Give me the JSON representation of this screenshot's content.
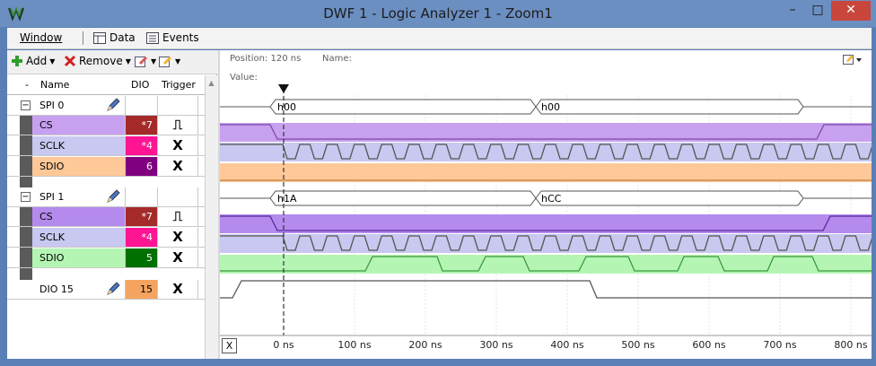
{
  "window": {
    "title": "DWF 1 - Logic Analyzer 1 - Zoom1",
    "controls": {
      "minimize": "–",
      "maximize": "□",
      "close": "✕"
    }
  },
  "menu": {
    "window": "Window",
    "data": "Data",
    "events": "Events"
  },
  "toolbar": {
    "add": "Add",
    "remove": "Remove"
  },
  "table": {
    "col_dash": "-",
    "col_name": "Name",
    "col_dio": "DIO",
    "col_trigger": "Trigger"
  },
  "rows": [
    {
      "kind": "bus",
      "name": "SPI 0",
      "collapse": "−"
    },
    {
      "kind": "signal",
      "name": "CS",
      "dio": "*7",
      "color": "#c8a0f0",
      "dio_color": "#a52a2a",
      "trigger": "⎍"
    },
    {
      "kind": "signal",
      "name": "SCLK",
      "dio": "*4",
      "color": "#c8c8f0",
      "dio_color": "#ff1493",
      "trigger": "X"
    },
    {
      "kind": "signal",
      "name": "SDIO",
      "dio": "6",
      "color": "#ffc899",
      "dio_color": "#800080",
      "trigger": "X"
    },
    {
      "kind": "bus",
      "name": "SPI 1",
      "collapse": "−"
    },
    {
      "kind": "signal",
      "name": "CS",
      "dio": "*7",
      "color": "#b48aed",
      "dio_color": "#a52a2a",
      "trigger": "⎍"
    },
    {
      "kind": "signal",
      "name": "SCLK",
      "dio": "*4",
      "color": "#c8c8f0",
      "dio_color": "#ff1493",
      "trigger": "X"
    },
    {
      "kind": "signal",
      "name": "SDIO",
      "dio": "5",
      "color": "#b4f5b4",
      "dio_color": "#007000",
      "trigger": "X"
    },
    {
      "kind": "dio",
      "name": "DIO 15",
      "dio": "15",
      "color": "#ffffff",
      "dio_color": "#f4a460",
      "trigger": "X"
    }
  ],
  "plot": {
    "position": "Position: 120 ns",
    "name_label": "Name:",
    "value_label": "Value:",
    "x_button": "X",
    "ticks": [
      "0 ns",
      "100 ns",
      "200 ns",
      "300 ns",
      "400 ns",
      "500 ns",
      "600 ns",
      "700 ns",
      "800 ns"
    ],
    "spi0_values": [
      "h00",
      "h00"
    ],
    "spi1_values": [
      "h1A",
      "hCC"
    ]
  }
}
